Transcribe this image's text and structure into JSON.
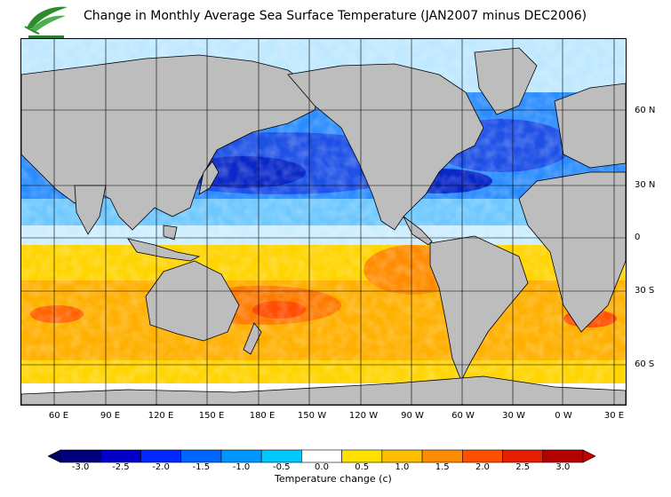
{
  "title": "Change in Monthly Average Sea Surface Temperature (JAN2007 minus DEC2006)",
  "map": {
    "lat_labels": [
      "60 N",
      "30 N",
      "0",
      "30 S",
      "60 S"
    ],
    "lon_labels": [
      "60 E",
      "90 E",
      "120 E",
      "150 E",
      "180 E",
      "150 W",
      "120 W",
      "90 W",
      "60 W",
      "30 W",
      "0 W",
      "30 E"
    ],
    "land_color": "#bdbdbd",
    "nodata_color": "#dcdcdc"
  },
  "legend": {
    "title": "Temperature change  (c)",
    "tick_labels": [
      "-3.0",
      "-2.5",
      "-2.0",
      "-1.5",
      "-1.0",
      "-0.5",
      "0.0",
      "0.5",
      "1.0",
      "1.5",
      "2.0",
      "2.5",
      "3.0"
    ],
    "colors": [
      "#00007d",
      "#0000c8",
      "#0028ff",
      "#0064ff",
      "#0096ff",
      "#00c8ff",
      "#ffffff",
      "#ffe100",
      "#ffbe00",
      "#ff8c00",
      "#ff5000",
      "#e61e00",
      "#b40000"
    ],
    "low_arrow_color": "#000064",
    "high_arrow_color": "#c80000"
  }
}
